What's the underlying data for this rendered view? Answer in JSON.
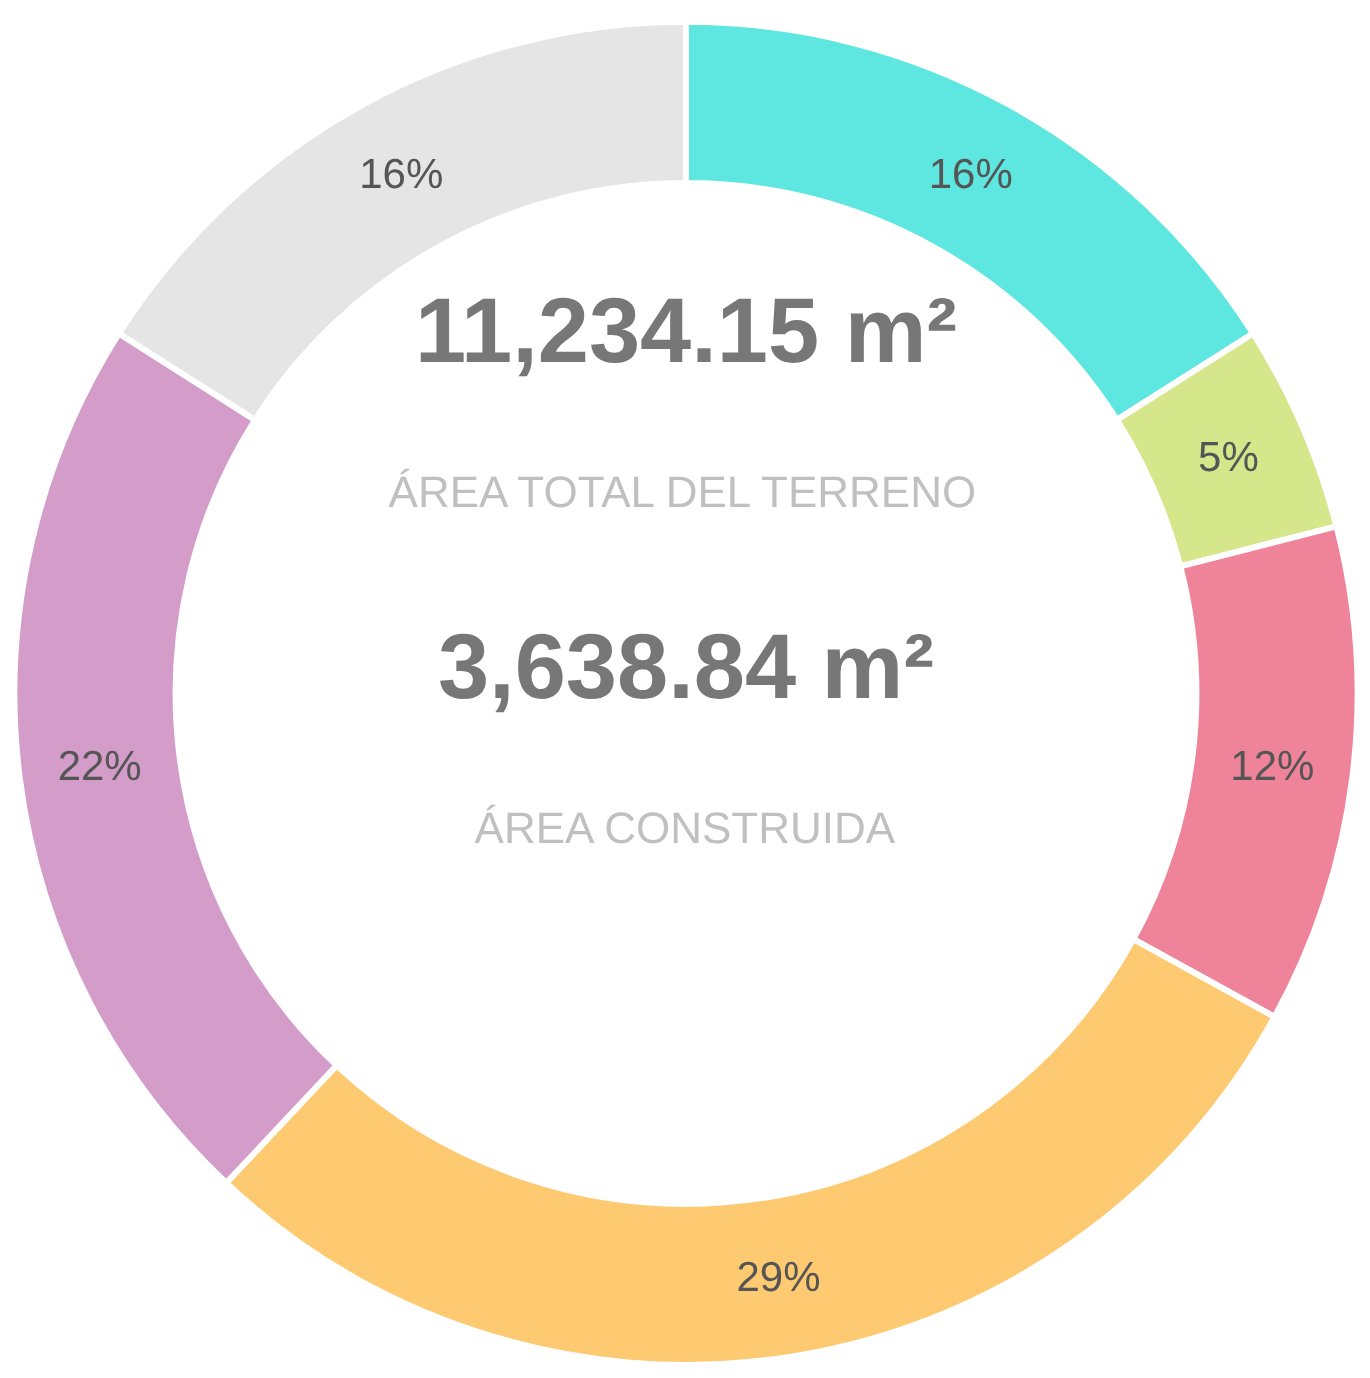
{
  "chart_data": {
    "type": "donut",
    "categories": [
      null,
      null,
      null,
      null,
      null,
      null
    ],
    "values": [
      16,
      5,
      12,
      29,
      22,
      16
    ],
    "colors": [
      "#5ee6e0",
      "#d6e68a",
      "#ee8399",
      "#fdc971",
      "#d39cc9",
      "#e5e5e5"
    ],
    "value_labels": [
      "16%",
      "5%",
      "12%",
      "29%",
      "22%",
      "16%"
    ],
    "annotations": [
      "11,234.15 m²",
      "ÁREA TOTAL DEL TERRENO",
      "3,638.84 m²",
      "ÁREA CONSTRUIDA"
    ]
  }
}
